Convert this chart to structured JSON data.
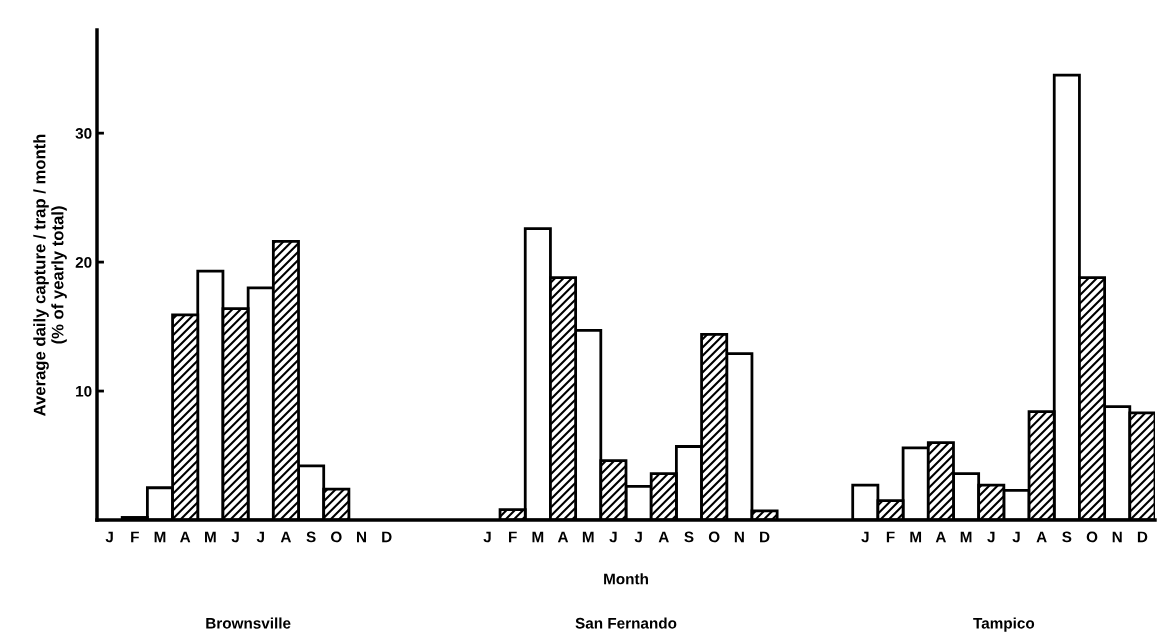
{
  "chart_data": {
    "type": "bar",
    "ylabel": "Average daily capture / trap / month\n(% of yearly total)",
    "xlabel": "Month",
    "categories": [
      "J",
      "F",
      "M",
      "A",
      "M",
      "J",
      "J",
      "A",
      "S",
      "O",
      "N",
      "D",
      null,
      null,
      null,
      "J",
      "F",
      "M",
      "A",
      "M",
      "J",
      "J",
      "A",
      "S",
      "O",
      "N",
      "D",
      null,
      null,
      null,
      "J",
      "F",
      "M",
      "A",
      "M",
      "J",
      "J",
      "A",
      "S",
      "O",
      "N",
      "D"
    ],
    "series": [
      {
        "color": "#ffffff",
        "values": [
          null,
          null,
          2.5,
          null,
          19.3,
          null,
          18.0,
          null,
          4.2,
          null,
          null,
          null,
          null,
          null,
          null,
          null,
          null,
          22.6,
          null,
          14.7,
          null,
          2.6,
          null,
          5.7,
          null,
          12.9,
          null,
          null,
          null,
          null,
          2.7,
          null,
          5.6,
          null,
          3.6,
          null,
          2.3,
          null,
          34.5,
          null,
          8.8,
          null
        ]
      },
      {
        "color": "#000000",
        "values": [
          null,
          0.2,
          null,
          15.9,
          null,
          16.4,
          null,
          21.6,
          null,
          2.4,
          null,
          null,
          null,
          null,
          null,
          null,
          0.8,
          null,
          18.8,
          null,
          4.6,
          null,
          3.6,
          null,
          14.4,
          null,
          0.7,
          null,
          null,
          null,
          null,
          1.5,
          null,
          6.0,
          null,
          2.7,
          null,
          8.4,
          null,
          18.8,
          null,
          8.3
        ]
      }
    ],
    "annotations": [
      "Brownsville",
      "San Fernando",
      "Tampico"
    ],
    "ylim": [
      0,
      38
    ],
    "yticks": [
      10,
      20,
      30
    ],
    "grid": false
  }
}
